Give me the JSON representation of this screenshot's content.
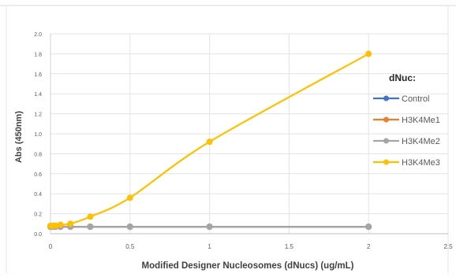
{
  "chart_data": {
    "type": "line",
    "title": "",
    "xlabel": "Modified Designer Nucleosomes (dNucs) (ug/mL)",
    "ylabel": "Abs (450nm)",
    "xlim": [
      0,
      2.5
    ],
    "ylim": [
      0,
      2.0
    ],
    "x_ticks": [
      "0",
      "0.5",
      "1",
      "1.5",
      "2",
      "2.5"
    ],
    "y_ticks": [
      "0.0",
      "0.2",
      "0.4",
      "0.6",
      "0.8",
      "1.0",
      "1.2",
      "1.4",
      "1.6",
      "1.8",
      "2.0"
    ],
    "grid": true,
    "legend": {
      "title": "dNuc:",
      "position": "right"
    },
    "series": [
      {
        "name": "Control",
        "color": "#4472C4",
        "x": [
          0,
          0.0156,
          0.0313,
          0.0625,
          0.125,
          0.25,
          0.5,
          1,
          2
        ],
        "y": [
          0.07,
          0.07,
          0.07,
          0.07,
          0.07,
          0.07,
          0.07,
          0.07,
          0.07
        ]
      },
      {
        "name": "H3K4Me1",
        "color": "#ED7D31",
        "x": [
          0,
          0.0156,
          0.0313,
          0.0625,
          0.125,
          0.25,
          0.5,
          1,
          2
        ],
        "y": [
          0.07,
          0.07,
          0.07,
          0.07,
          0.07,
          0.07,
          0.07,
          0.07,
          0.07
        ]
      },
      {
        "name": "H3K4Me2",
        "color": "#A5A5A5",
        "x": [
          0,
          0.0156,
          0.0313,
          0.0625,
          0.125,
          0.25,
          0.5,
          1,
          2
        ],
        "y": [
          0.07,
          0.07,
          0.07,
          0.07,
          0.07,
          0.07,
          0.07,
          0.07,
          0.07
        ]
      },
      {
        "name": "H3K4Me3",
        "color": "#FFC000",
        "x": [
          0,
          0.0156,
          0.0313,
          0.0625,
          0.125,
          0.25,
          0.5,
          1,
          2
        ],
        "y": [
          0.08,
          0.08,
          0.08,
          0.09,
          0.1,
          0.17,
          0.36,
          0.92,
          1.8
        ]
      }
    ]
  }
}
